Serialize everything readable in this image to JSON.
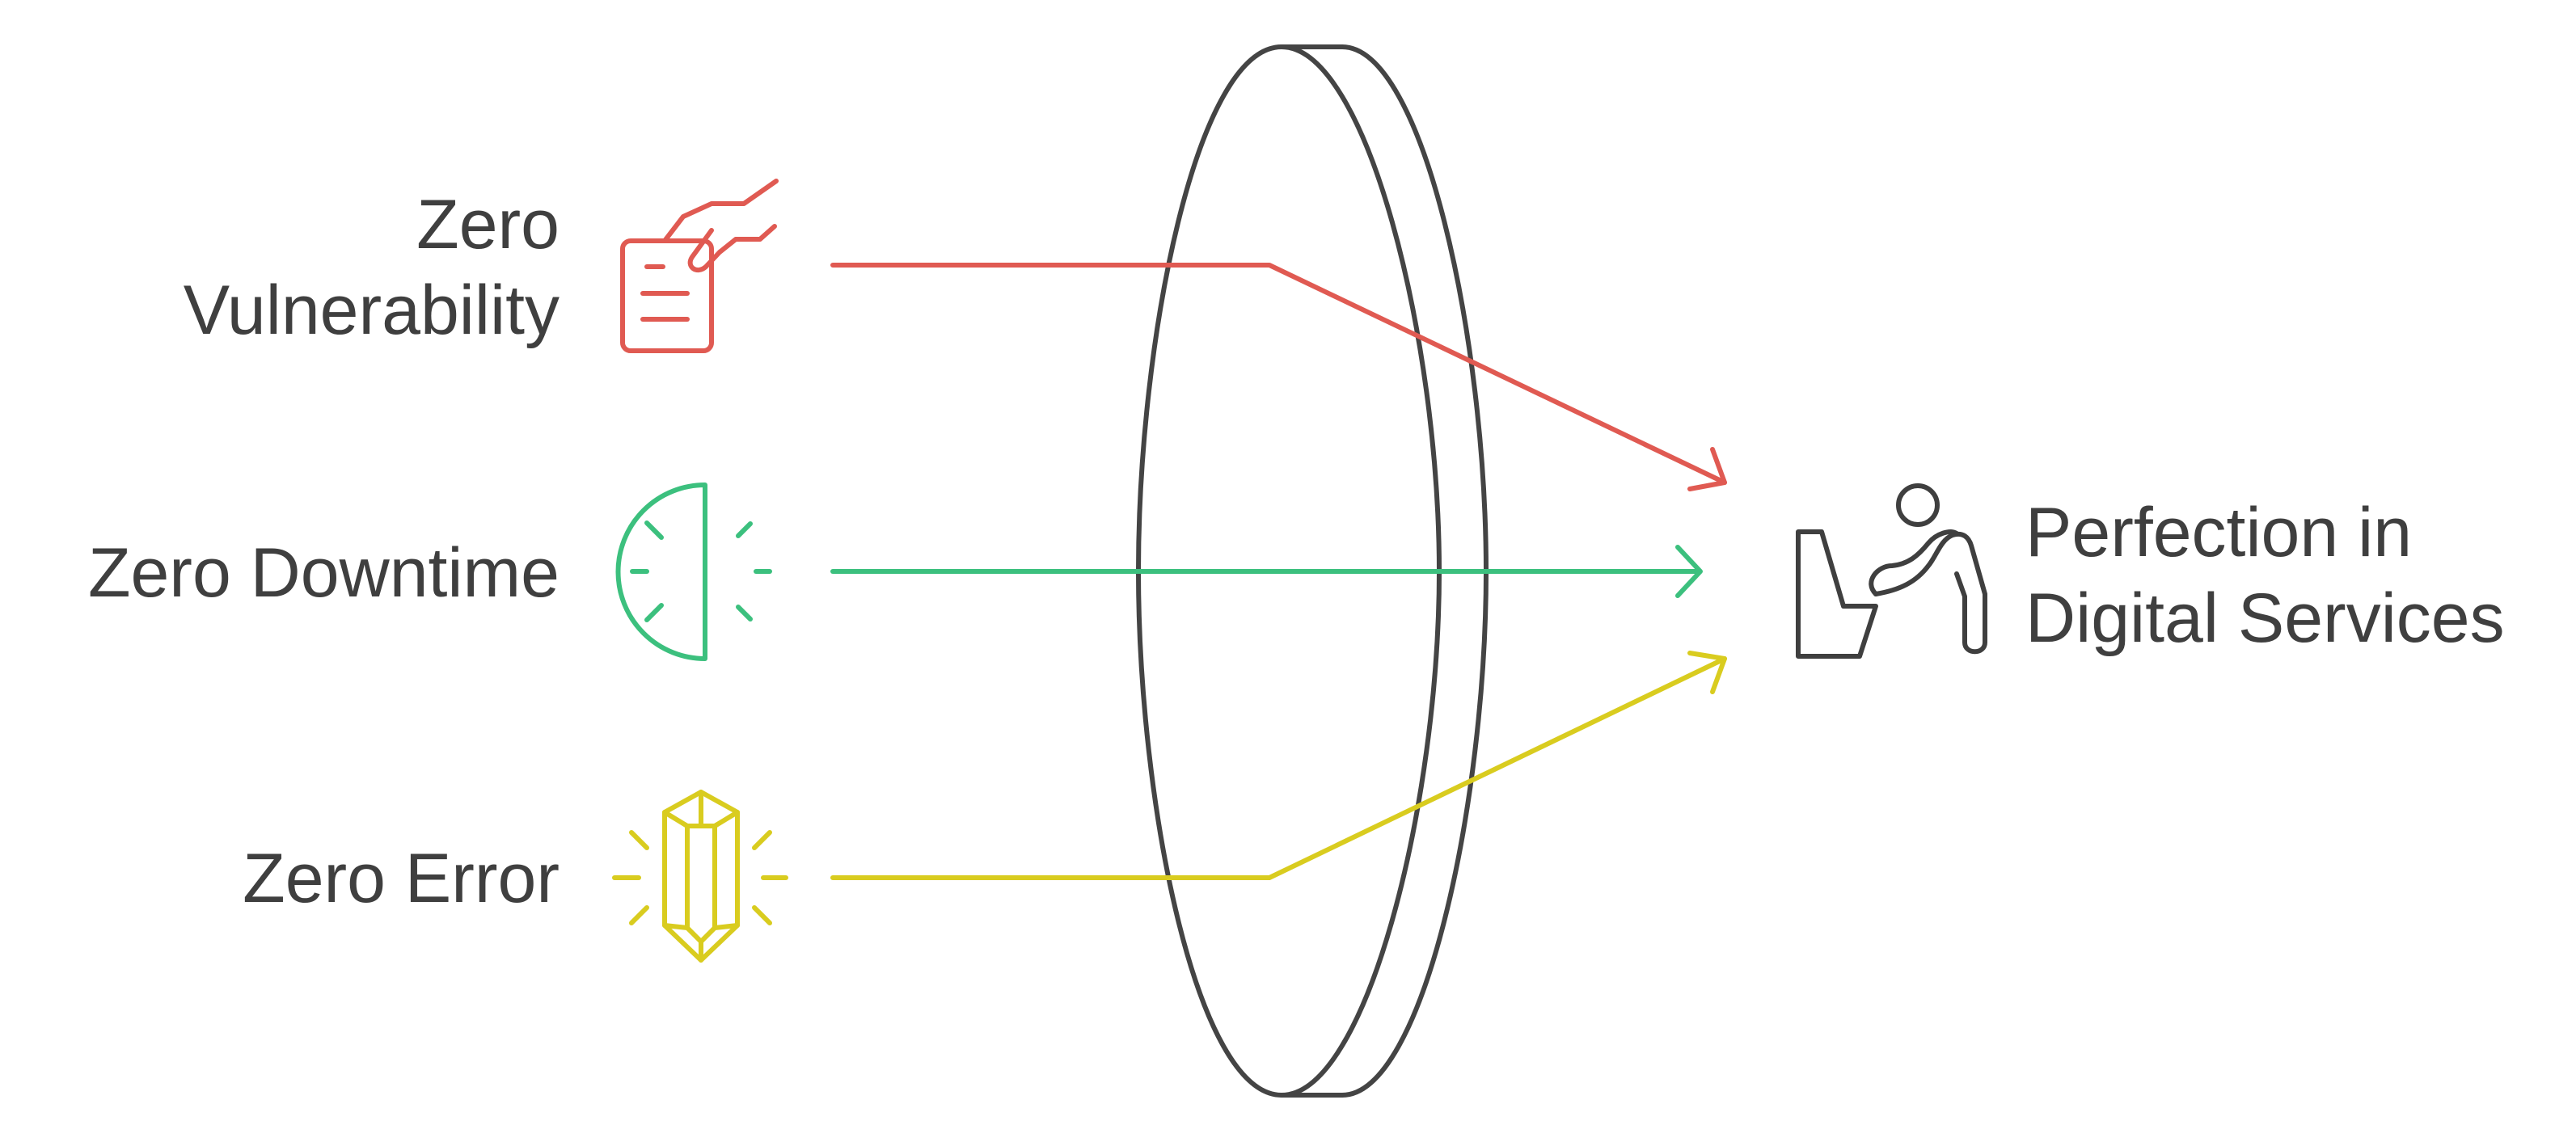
{
  "inputs": [
    {
      "line1": "Zero",
      "line2": "Vulnerability",
      "color": "#e05a52",
      "icon": "clipboard-hand-icon"
    },
    {
      "line1": "Zero Downtime",
      "color": "#3cc07e",
      "icon": "half-clock-icon"
    },
    {
      "line1": "Zero Error",
      "color": "#d9cc1f",
      "icon": "crystal-icon"
    }
  ],
  "output": {
    "line1": "Perfection in",
    "line2": "Digital Services",
    "icon": "person-desk-icon",
    "color": "#3f3f3f"
  },
  "lens": {
    "icon": "lens-icon",
    "color": "#444444"
  }
}
